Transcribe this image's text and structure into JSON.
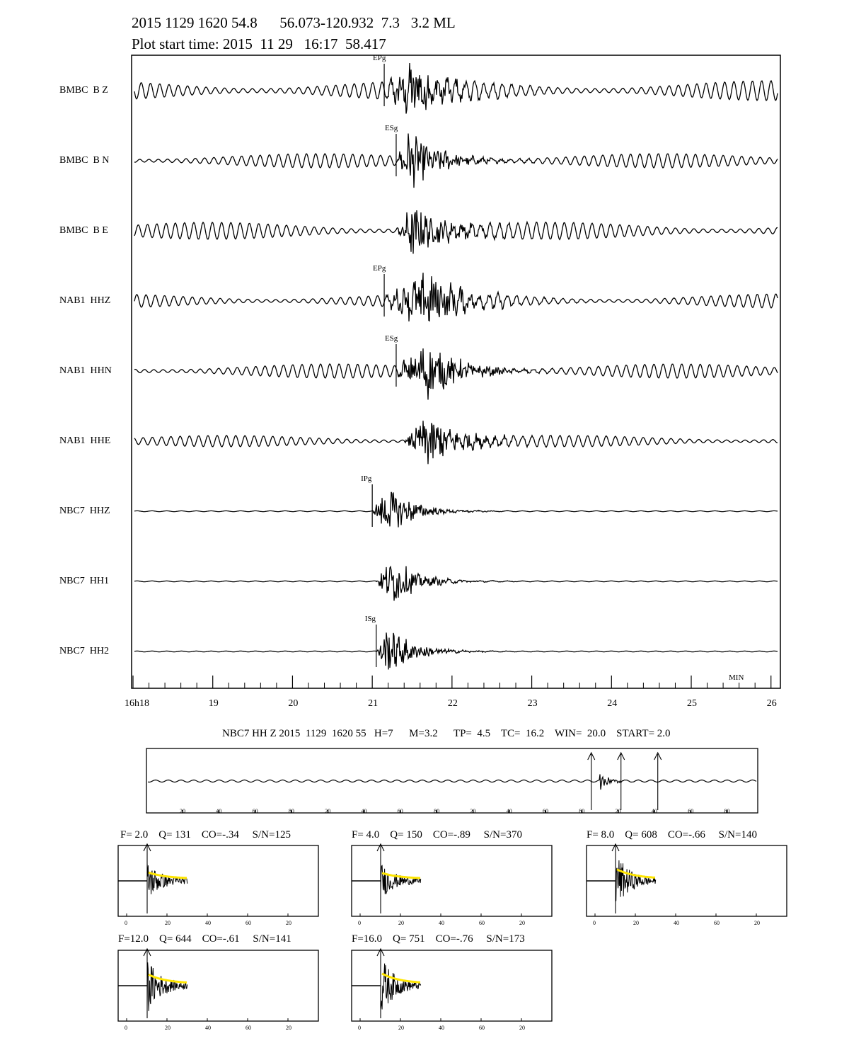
{
  "header": {
    "event_line": "2015 1129 1620 54.8      56.073-120.932  7.3   3.2 ML",
    "plot_start": "Plot start time: 2015  11 29   16:17  58.417"
  },
  "chart_data": [
    {
      "type": "line",
      "description_kind": "seismogram",
      "x_unit": "MIN",
      "x_ticks": [
        "16h18",
        "19",
        "20",
        "21",
        "22",
        "23",
        "24",
        "25",
        "26"
      ],
      "xlim": [
        18,
        26.1
      ],
      "traces": [
        {
          "name": "BMBC  B Z",
          "onset": 21.15,
          "peak": 21.5,
          "noise": 0.35,
          "pick": "EPg"
        },
        {
          "name": "BMBC  B N",
          "onset": 21.3,
          "peak": 21.45,
          "noise": 0.25,
          "pick": "ESg"
        },
        {
          "name": "BMBC  B E",
          "onset": 21.3,
          "peak": 21.5,
          "noise": 0.3,
          "pick": ""
        },
        {
          "name": "NAB1  HHZ",
          "onset": 21.15,
          "peak": 21.7,
          "noise": 0.25,
          "pick": "EPg"
        },
        {
          "name": "NAB1  HHN",
          "onset": 21.3,
          "peak": 21.7,
          "noise": 0.25,
          "pick": "ESg"
        },
        {
          "name": "NAB1  HHE",
          "onset": 21.4,
          "peak": 21.7,
          "noise": 0.2,
          "pick": ""
        },
        {
          "name": "NBC7  HHZ",
          "onset": 21.0,
          "peak": 21.2,
          "noise": 0.0,
          "pick": "IPg"
        },
        {
          "name": "NBC7  HH1",
          "onset": 21.05,
          "peak": 21.25,
          "noise": 0.0,
          "pick": ""
        },
        {
          "name": "NBC7  HH2",
          "onset": 21.05,
          "peak": 21.2,
          "noise": 0.0,
          "pick": "ISg"
        }
      ]
    },
    {
      "type": "line",
      "description_kind": "coda-window",
      "title": "NBC7 HH Z 2015  1129  1620 55   H=7      M=3.2      TP=  4.5    TC=  16.2    WIN=  20.0    START= 2.0",
      "x_ticks": [
        "20",
        "40",
        "60",
        "80",
        "20",
        "40",
        "60",
        "80",
        "20",
        "40",
        "60",
        "80",
        "20",
        "40",
        "60",
        "80",
        "20",
        "40",
        "60"
      ],
      "event_at_fraction": 0.73
    },
    {
      "type": "line",
      "description_kind": "coda-fits",
      "fit_color": "#ffe600",
      "x_ticks": [
        "0",
        "20",
        "40",
        "60",
        "20"
      ],
      "panels": [
        {
          "label": "F= 2.0    Q= 131    CO=-.34     S/N=125",
          "amp": 0.6
        },
        {
          "label": "F= 4.0    Q= 150    CO=-.89     S/N=370",
          "amp": 0.55
        },
        {
          "label": "F= 8.0    Q= 608    CO=-.66     S/N=140",
          "amp": 0.9
        },
        {
          "label": "F=12.0    Q= 644    CO=-.61     S/N=141",
          "amp": 0.85
        },
        {
          "label": "F=16.0    Q= 751    CO=-.76     S/N=173",
          "amp": 0.95
        }
      ]
    }
  ],
  "main_plot": {
    "axis_unit": "MIN"
  }
}
